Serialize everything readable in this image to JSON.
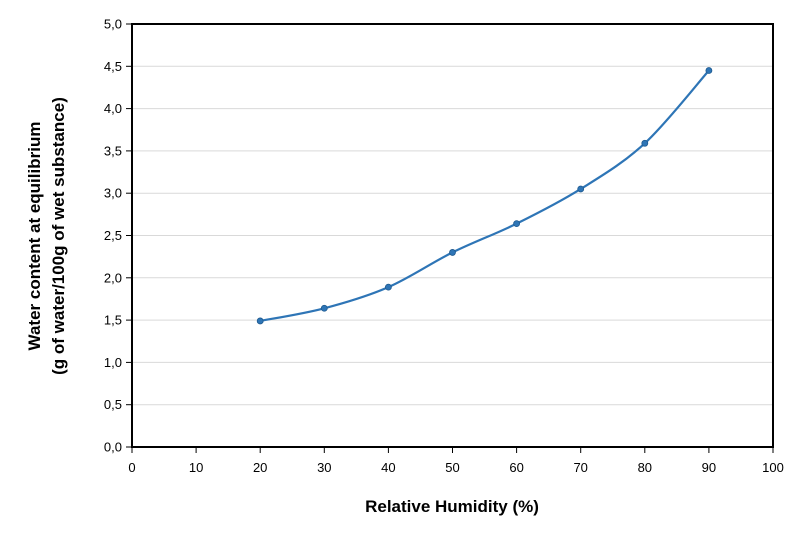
{
  "chart_data": {
    "type": "line",
    "title": "",
    "xlabel": "Relative Humidity (%)",
    "ylabel_line1": "Water content at equilibrium",
    "ylabel_line2": "(g of water/100g of wet substance)",
    "xlim": [
      0,
      100
    ],
    "ylim": [
      0,
      5
    ],
    "xticks": [
      "0",
      "10",
      "20",
      "30",
      "40",
      "50",
      "60",
      "70",
      "80",
      "90",
      "100"
    ],
    "yticks": [
      "0,0",
      "0,5",
      "1,0",
      "1,5",
      "2,0",
      "2,5",
      "3,0",
      "3,5",
      "4,0",
      "4,5",
      "5,0"
    ],
    "grid": "horizontal",
    "smooth": true,
    "series": [
      {
        "color": "#2E75B6",
        "x": [
          20,
          30,
          40,
          50,
          60,
          70,
          80,
          90
        ],
        "y": [
          1.49,
          1.64,
          1.89,
          2.3,
          2.64,
          3.05,
          3.59,
          4.45
        ]
      }
    ]
  }
}
